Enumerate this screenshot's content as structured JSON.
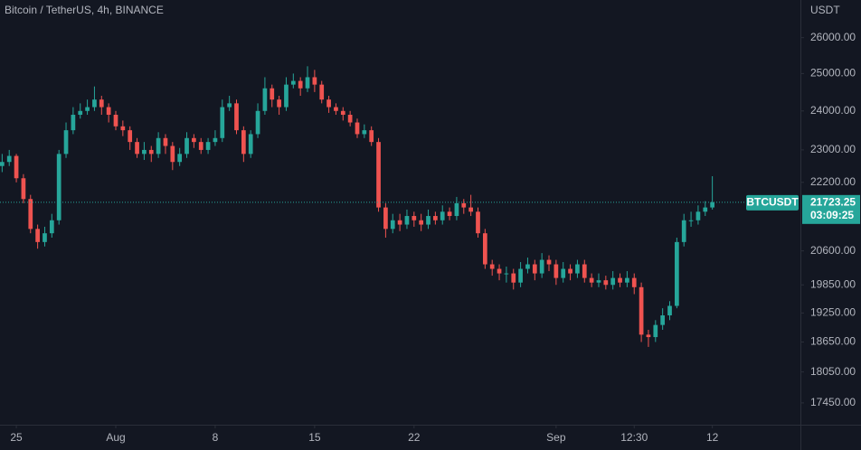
{
  "chart_data": {
    "type": "candlestick",
    "title": "Bitcoin / TetherUS, 4h, BINANCE",
    "y_axis_label": "USDT",
    "log_scale": true,
    "grid": false,
    "up_color": "#26a69a",
    "down_color": "#ef5350",
    "xlim": [
      -1.15,
      55.2
    ],
    "ylim": [
      17040,
      27090
    ],
    "xticks": [
      {
        "value": 0,
        "label": "25"
      },
      {
        "value": 7,
        "label": "Aug"
      },
      {
        "value": 14,
        "label": "8"
      },
      {
        "value": 21,
        "label": "15"
      },
      {
        "value": 28,
        "label": "22"
      },
      {
        "value": 38,
        "label": "Sep"
      },
      {
        "value": 43.5,
        "label": "12:30"
      },
      {
        "value": 49,
        "label": "12"
      }
    ],
    "yticks": [
      {
        "value": 26000,
        "label": "26000.00"
      },
      {
        "value": 25000,
        "label": "25000.00"
      },
      {
        "value": 24000,
        "label": "24000.00"
      },
      {
        "value": 23000,
        "label": "23000.00"
      },
      {
        "value": 22200,
        "label": "22200.00"
      },
      {
        "value": 20600,
        "label": "20600.00"
      },
      {
        "value": 19850,
        "label": "19850.00"
      },
      {
        "value": 19250,
        "label": "19250.00"
      },
      {
        "value": 18650,
        "label": "18650.00"
      },
      {
        "value": 18050,
        "label": "18050.00"
      },
      {
        "value": 17450,
        "label": "17450.00"
      }
    ],
    "last_price": {
      "symbol": "BTCUSDT",
      "value": 21723.25,
      "countdown": "03:09:25"
    },
    "x": [
      -1,
      -0.5,
      0,
      0.5,
      1,
      1.5,
      2,
      2.5,
      3,
      3.5,
      4,
      4.5,
      5,
      5.5,
      6,
      6.5,
      7,
      7.5,
      8,
      8.5,
      9,
      9.5,
      10,
      10.5,
      11,
      11.5,
      12,
      12.5,
      13,
      13.5,
      14,
      14.5,
      15,
      15.5,
      16,
      16.5,
      17,
      17.5,
      18,
      18.5,
      19,
      19.5,
      20,
      20.5,
      21,
      21.5,
      22,
      22.5,
      23,
      23.5,
      24,
      24.5,
      25,
      25.5,
      26,
      26.5,
      27,
      27.5,
      28,
      28.5,
      29,
      29.5,
      30,
      30.5,
      31,
      31.5,
      32,
      32.5,
      33,
      33.5,
      34,
      34.5,
      35,
      35.5,
      36,
      36.5,
      37,
      37.5,
      38,
      38.5,
      39,
      39.5,
      40,
      40.5,
      41,
      41.5,
      42,
      42.5,
      43,
      43.5,
      44,
      44.5,
      45,
      45.5,
      46,
      46.5,
      47,
      47.5,
      48,
      48.5,
      49
    ],
    "open": [
      22600,
      22700,
      22850,
      22300,
      21800,
      21100,
      20800,
      21000,
      21300,
      22900,
      23500,
      23900,
      24000,
      24100,
      24300,
      24100,
      23900,
      23600,
      23500,
      23200,
      22900,
      23000,
      22900,
      23300,
      23100,
      22700,
      22900,
      23300,
      23200,
      23000,
      23200,
      23300,
      24100,
      24200,
      23500,
      22900,
      23400,
      24000,
      24600,
      24300,
      24100,
      24700,
      24800,
      24600,
      24900,
      24700,
      24300,
      24100,
      24000,
      23900,
      23700,
      23400,
      23500,
      23200,
      21600,
      21100,
      21300,
      21200,
      21400,
      21300,
      21200,
      21400,
      21300,
      21500,
      21400,
      21700,
      21600,
      21500,
      21000,
      20300,
      20200,
      20100,
      20100,
      19900,
      20200,
      20300,
      20100,
      20400,
      20300,
      20000,
      20200,
      20100,
      20300,
      20000,
      19900,
      19950,
      19850,
      20000,
      19900,
      20000,
      19800,
      18800,
      18750,
      19000,
      19200,
      19400,
      20800,
      21300,
      21300,
      21500,
      21600
    ],
    "high": [
      22900,
      23000,
      22900,
      22400,
      21900,
      21200,
      21150,
      21450,
      23000,
      23700,
      24100,
      24200,
      24300,
      24650,
      24400,
      24200,
      24000,
      23750,
      23600,
      23300,
      23200,
      23100,
      23450,
      23400,
      23200,
      23050,
      23450,
      23400,
      23300,
      23300,
      23500,
      24300,
      24400,
      24300,
      23600,
      23500,
      24200,
      24900,
      24700,
      24400,
      24900,
      25000,
      24900,
      25200,
      25100,
      24800,
      24400,
      24200,
      24100,
      24000,
      23800,
      23650,
      23600,
      23300,
      21700,
      21450,
      21450,
      21550,
      21500,
      21450,
      21550,
      21500,
      21650,
      21600,
      21850,
      21800,
      21900,
      21600,
      21100,
      20400,
      20300,
      20250,
      20200,
      20350,
      20450,
      20400,
      20550,
      20500,
      20400,
      20350,
      20300,
      20400,
      20400,
      20100,
      20100,
      20050,
      20150,
      20100,
      20150,
      20100,
      19900,
      18900,
      19100,
      19350,
      19500,
      20900,
      21450,
      21500,
      21650,
      21750,
      22350
    ],
    "low": [
      22450,
      22600,
      22200,
      21700,
      21000,
      20650,
      20700,
      20900,
      21200,
      22800,
      23400,
      23800,
      23900,
      24000,
      23900,
      23700,
      23500,
      23350,
      23000,
      22800,
      22750,
      22700,
      22800,
      22900,
      22500,
      22600,
      22800,
      23050,
      22900,
      22900,
      23100,
      23200,
      24000,
      23400,
      22700,
      22800,
      23300,
      23900,
      24100,
      23900,
      24000,
      24600,
      24400,
      24500,
      24500,
      24200,
      23950,
      23900,
      23750,
      23600,
      23300,
      23300,
      23100,
      21500,
      20900,
      21000,
      21050,
      21100,
      21150,
      21050,
      21100,
      21200,
      21200,
      21300,
      21300,
      21450,
      21400,
      20900,
      20200,
      20050,
      19950,
      19900,
      19750,
      19800,
      20100,
      19950,
      20000,
      20150,
      19850,
      19900,
      19950,
      20000,
      19900,
      19800,
      19800,
      19750,
      19750,
      19800,
      19800,
      19650,
      18650,
      18550,
      18650,
      18900,
      19100,
      19350,
      20700,
      21150,
      21200,
      21400,
      21550
    ],
    "close": [
      22700,
      22850,
      22300,
      21800,
      21100,
      20800,
      21000,
      21300,
      22900,
      23500,
      23900,
      24000,
      24100,
      24300,
      24100,
      23900,
      23600,
      23500,
      23200,
      22900,
      23000,
      22900,
      23300,
      23100,
      22700,
      22900,
      23300,
      23200,
      23000,
      23200,
      23300,
      24100,
      24200,
      23500,
      22900,
      23400,
      24000,
      24600,
      24300,
      24100,
      24700,
      24800,
      24600,
      24900,
      24700,
      24300,
      24100,
      24000,
      23900,
      23700,
      23400,
      23500,
      23200,
      21600,
      21100,
      21300,
      21200,
      21400,
      21300,
      21200,
      21400,
      21300,
      21500,
      21400,
      21700,
      21600,
      21500,
      21000,
      20300,
      20200,
      20100,
      20100,
      19900,
      20200,
      20300,
      20100,
      20400,
      20300,
      20000,
      20200,
      20100,
      20300,
      20000,
      19900,
      19950,
      19850,
      20000,
      19900,
      20000,
      19800,
      18800,
      18750,
      19000,
      19200,
      19400,
      20800,
      21300,
      21300,
      21500,
      21600,
      21723.25
    ]
  }
}
